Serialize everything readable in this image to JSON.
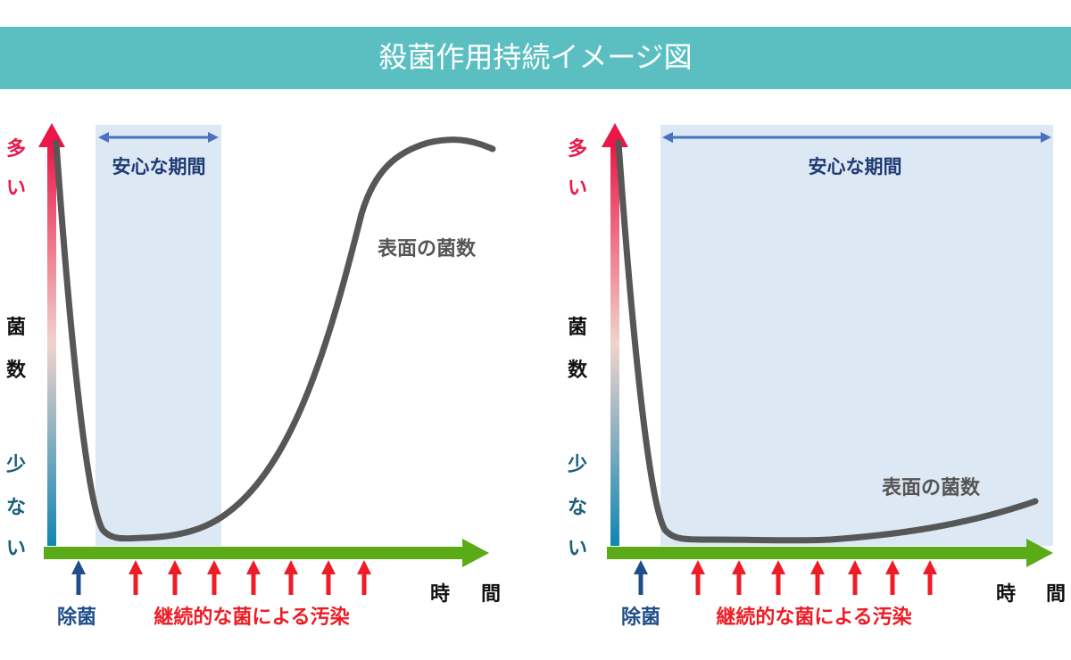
{
  "header": {
    "title": "殺菌作用持続イメージ図"
  },
  "panels": [
    {
      "y_axis": {
        "high": [
          "多",
          "い"
        ],
        "label": [
          "菌",
          "数"
        ],
        "low": [
          "少",
          "な",
          "い"
        ]
      },
      "safe_period": "安心な期間",
      "curve_label": "表面の菌数",
      "x_axis": [
        "時",
        "間"
      ],
      "disinfection": "除菌",
      "contamination": "継続的な菌による汚染"
    },
    {
      "y_axis": {
        "high": [
          "多",
          "い"
        ],
        "label": [
          "菌",
          "数"
        ],
        "low": [
          "少",
          "な",
          "い"
        ]
      },
      "safe_period": "安心な期間",
      "curve_label": "表面の菌数",
      "x_axis": [
        "時",
        "間"
      ],
      "disinfection": "除菌",
      "contamination": "継続的な菌による汚染"
    }
  ]
}
